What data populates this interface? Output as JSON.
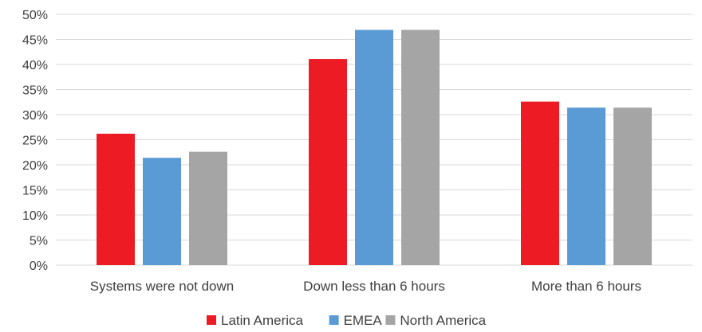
{
  "chart_data": {
    "type": "bar",
    "categories": [
      "Systems were not down",
      "Down less than 6 hours",
      "More than 6 hours"
    ],
    "series": [
      {
        "name": "Latin America",
        "color": "#ed1c24",
        "values": [
          0.262,
          0.411,
          0.326
        ]
      },
      {
        "name": "EMEA",
        "color": "#5b9bd5",
        "values": [
          0.214,
          0.469,
          0.314
        ]
      },
      {
        "name": "North America",
        "color": "#a5a5a5",
        "values": [
          0.226,
          0.469,
          0.314
        ]
      }
    ],
    "y_ticks": [
      "0%",
      "5%",
      "10%",
      "15%",
      "20%",
      "25%",
      "30%",
      "35%",
      "40%",
      "45%",
      "50%"
    ],
    "ylim": [
      0,
      0.5
    ],
    "grid": true,
    "legend_position": "bottom"
  }
}
